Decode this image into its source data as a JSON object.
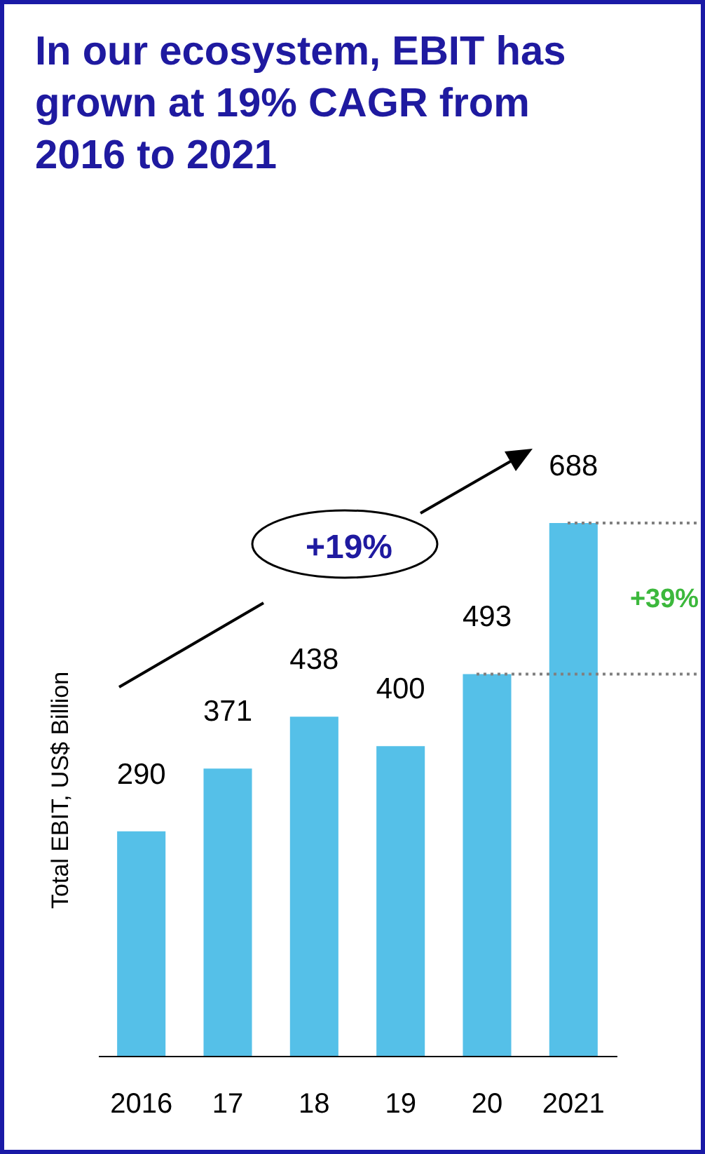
{
  "chart_data": {
    "type": "bar",
    "title": "In our ecosystem, EBIT has grown at 19% CAGR from 2016 to 2021",
    "ylabel": "Total EBIT, US$ Billion",
    "categories": [
      "2016",
      "17",
      "18",
      "19",
      "20",
      "2021"
    ],
    "values": [
      290,
      371,
      438,
      400,
      493,
      688
    ],
    "color": "#55c0e8",
    "data_labels": true,
    "ref_lines": [
      {
        "axis": "y",
        "value": 493,
        "color": "#808080",
        "line_style": "dotted"
      },
      {
        "axis": "y",
        "value": 688,
        "color": "#808080",
        "line_style": "dotted"
      }
    ],
    "annotations": [
      "+19%",
      "+39%"
    ]
  }
}
